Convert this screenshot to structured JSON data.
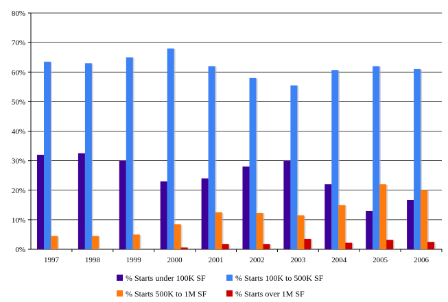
{
  "chart_data": {
    "type": "bar",
    "title": "",
    "xlabel": "",
    "ylabel": "",
    "categories": [
      "1997",
      "1998",
      "1999",
      "2000",
      "2001",
      "2002",
      "2003",
      "2004",
      "2005",
      "2006"
    ],
    "ylim": [
      0,
      80
    ],
    "yticks": [
      "0%",
      "10%",
      "20%",
      "30%",
      "40%",
      "50%",
      "60%",
      "70%",
      "80%"
    ],
    "grid": true,
    "legend_position": "bottom",
    "series": [
      {
        "name": "% Starts under 100K SF",
        "color": "#3d0099",
        "values": [
          32,
          32.5,
          30,
          23,
          24,
          28,
          30,
          22,
          13,
          16.7
        ]
      },
      {
        "name": "% Starts 100K to 500K SF",
        "color": "#3d82f5",
        "values": [
          63.5,
          63,
          65,
          68,
          62,
          58,
          55.5,
          60.7,
          62,
          61
        ]
      },
      {
        "name": "% Starts 500K to 1M SF",
        "color": "#ff7a0d",
        "values": [
          4.5,
          4.5,
          5,
          8.5,
          12.5,
          12.3,
          11.5,
          15,
          22,
          20
        ]
      },
      {
        "name": "% Starts over 1M SF",
        "color": "#cc0000",
        "values": [
          0,
          0,
          0,
          0.6,
          1.8,
          1.8,
          3.5,
          2.2,
          3.2,
          2.5
        ]
      }
    ]
  }
}
